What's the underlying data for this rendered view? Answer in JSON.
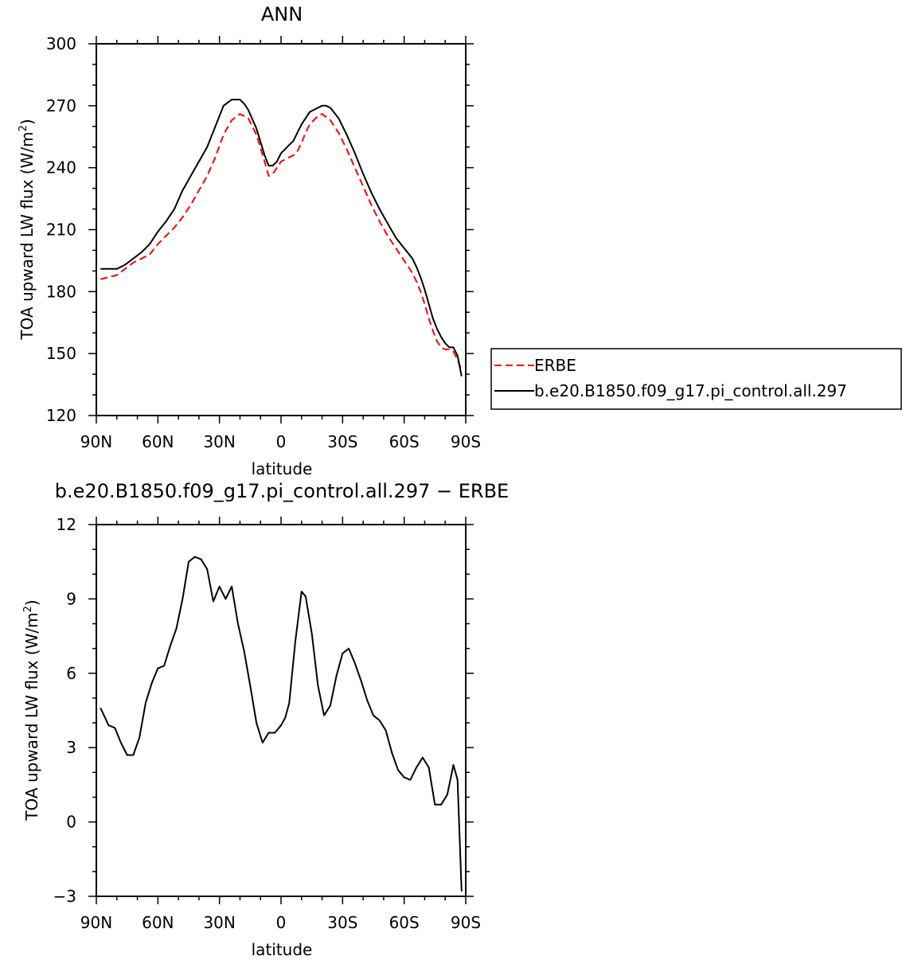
{
  "chart_data": [
    {
      "type": "line",
      "title": "ANN",
      "xlabel": "latitude",
      "ylabel": "TOA upward LW flux (W/m",
      "ylabel_sup": "2",
      "ylabel_close": ")",
      "xlim": [
        -90,
        90
      ],
      "ylim": [
        120,
        300
      ],
      "x_ticks": [
        -90,
        -60,
        -30,
        0,
        30,
        60,
        90
      ],
      "x_tick_labels": [
        "90N",
        "60N",
        "30N",
        "0",
        "30S",
        "60S",
        "90S"
      ],
      "y_ticks": [
        120,
        150,
        180,
        210,
        240,
        270,
        300
      ],
      "y_tick_labels": [
        "120",
        "150",
        "180",
        "210",
        "240",
        "270",
        "300"
      ],
      "legend": "right-middle",
      "series": [
        {
          "name": "ERBE",
          "color": "#ff0000",
          "dash": "dashed",
          "x": [
            -88,
            -84,
            -80,
            -76,
            -72,
            -68,
            -64,
            -60,
            -56,
            -52,
            -48,
            -44,
            -40,
            -36,
            -32,
            -28,
            -24,
            -20,
            -16,
            -12,
            -8,
            -6,
            -4,
            -2,
            0,
            2,
            4,
            6,
            8,
            10,
            12,
            14,
            16,
            18,
            20,
            24,
            28,
            32,
            36,
            40,
            44,
            48,
            52,
            56,
            60,
            64,
            66,
            68,
            70,
            72,
            74,
            76,
            78,
            80,
            82,
            84,
            86,
            88
          ],
          "y": [
            186,
            187,
            188,
            191,
            194,
            196,
            198,
            203,
            207,
            211,
            216,
            222,
            229,
            236,
            245,
            256,
            263,
            266,
            264,
            256,
            243,
            236,
            237,
            240,
            243,
            244,
            245,
            246,
            248,
            252,
            257,
            261,
            263,
            265,
            266,
            263,
            257,
            249,
            240,
            231,
            222,
            214,
            207,
            201,
            195,
            189,
            185,
            180,
            174,
            167,
            161,
            156,
            153,
            152,
            152,
            151,
            147,
            142
          ]
        },
        {
          "name": "b.e20.B1850.f09_g17.pi_control.all.297",
          "color": "#000000",
          "dash": "solid",
          "x": [
            -88,
            -84,
            -80,
            -76,
            -72,
            -68,
            -64,
            -60,
            -56,
            -52,
            -48,
            -44,
            -40,
            -36,
            -32,
            -28,
            -24,
            -22,
            -20,
            -18,
            -16,
            -12,
            -8,
            -6,
            -4,
            -2,
            0,
            2,
            4,
            6,
            8,
            10,
            12,
            14,
            16,
            18,
            20,
            22,
            24,
            28,
            32,
            36,
            40,
            44,
            48,
            52,
            56,
            60,
            64,
            66,
            68,
            70,
            72,
            74,
            76,
            78,
            80,
            82,
            84,
            86,
            88
          ],
          "y": [
            191,
            191,
            191,
            193,
            196,
            199,
            203,
            209,
            214,
            220,
            229,
            236,
            243,
            250,
            260,
            270,
            273,
            273,
            273,
            271,
            268,
            259,
            246,
            241,
            241,
            243,
            247,
            249,
            251,
            253,
            257,
            261,
            264,
            267,
            268,
            269,
            270,
            270,
            269,
            264,
            256,
            247,
            237,
            228,
            220,
            213,
            206,
            201,
            196,
            192,
            187,
            181,
            174,
            167,
            162,
            158,
            155,
            153,
            153,
            149,
            139
          ]
        }
      ]
    },
    {
      "type": "line",
      "title": "b.e20.B1850.f09_g17.pi_control.all.297 − ERBE",
      "xlabel": "latitude",
      "ylabel": "TOA upward LW flux (W/m",
      "ylabel_sup": "2",
      "ylabel_close": ")",
      "xlim": [
        -90,
        90
      ],
      "ylim": [
        -3,
        12
      ],
      "x_ticks": [
        -90,
        -60,
        -30,
        0,
        30,
        60,
        90
      ],
      "x_tick_labels": [
        "90N",
        "60N",
        "30N",
        "0",
        "30S",
        "60S",
        "90S"
      ],
      "y_ticks": [
        -3,
        0,
        3,
        6,
        9,
        12
      ],
      "y_tick_labels": [
        "−3",
        "0",
        "3",
        "6",
        "9",
        "12"
      ],
      "series": [
        {
          "color": "#000000",
          "dash": "solid",
          "x": [
            -88,
            -84,
            -81,
            -78,
            -75,
            -72,
            -69,
            -66,
            -63,
            -60,
            -57,
            -54,
            -51,
            -48,
            -45,
            -42,
            -39,
            -36,
            -33,
            -30,
            -27,
            -24,
            -21,
            -18,
            -15,
            -12,
            -9,
            -6,
            -3,
            0,
            2,
            4,
            7,
            10,
            12,
            15,
            18,
            21,
            24,
            27,
            30,
            33,
            36,
            39,
            42,
            45,
            48,
            51,
            54,
            57,
            60,
            63,
            66,
            69,
            72,
            75,
            78,
            81,
            84,
            86,
            88
          ],
          "y": [
            4.6,
            3.9,
            3.8,
            3.2,
            2.7,
            2.7,
            3.4,
            4.8,
            5.6,
            6.2,
            6.3,
            7.1,
            7.8,
            9.0,
            10.5,
            10.7,
            10.6,
            10.2,
            8.9,
            9.5,
            9.0,
            9.5,
            8.0,
            6.9,
            5.5,
            4.0,
            3.2,
            3.6,
            3.6,
            3.9,
            4.2,
            4.8,
            7.3,
            9.3,
            9.1,
            7.6,
            5.5,
            4.3,
            4.7,
            5.9,
            6.8,
            7.0,
            6.4,
            5.7,
            4.9,
            4.3,
            4.1,
            3.7,
            2.8,
            2.1,
            1.8,
            1.7,
            2.2,
            2.6,
            2.2,
            0.7,
            0.7,
            1.1,
            2.3,
            1.7,
            -2.8
          ]
        }
      ]
    }
  ]
}
